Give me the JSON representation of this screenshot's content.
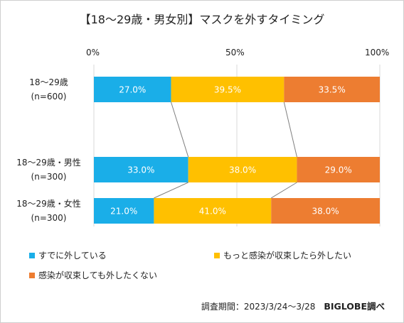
{
  "chart_data": {
    "type": "bar",
    "orientation": "horizontal",
    "stacked": true,
    "title": "【18～29歳・男女別】マスクを外すタイミング",
    "categories": [
      [
        "18～29歳",
        "(n=600)"
      ],
      [
        "18～29歳・男性",
        "(n=300)"
      ],
      [
        "18～29歳・女性",
        "(n=300)"
      ]
    ],
    "series": [
      {
        "name": "すでに外している",
        "color": "#1AAEE8",
        "values": [
          27.0,
          33.0,
          21.0
        ],
        "labels": [
          "27.0%",
          "33.0%",
          "21.0%"
        ]
      },
      {
        "name": "もっと感染が収束したら外したい",
        "color": "#FFC000",
        "values": [
          39.5,
          38.0,
          41.0
        ],
        "labels": [
          "39.5%",
          "38.0%",
          "41.0%"
        ]
      },
      {
        "name": "感染が収束しても外したくない",
        "color": "#ED7D31",
        "values": [
          33.5,
          29.0,
          38.0
        ],
        "labels": [
          "33.5%",
          "29.0%",
          "38.0%"
        ]
      }
    ],
    "xlim": [
      0,
      100
    ],
    "xticks": [
      "0%",
      "50%",
      "100%"
    ],
    "grid": true,
    "legend_position": "bottom"
  },
  "source": {
    "note": "調査期間：2023/3/24～3/28",
    "brand": "BIGLOBE調べ"
  }
}
